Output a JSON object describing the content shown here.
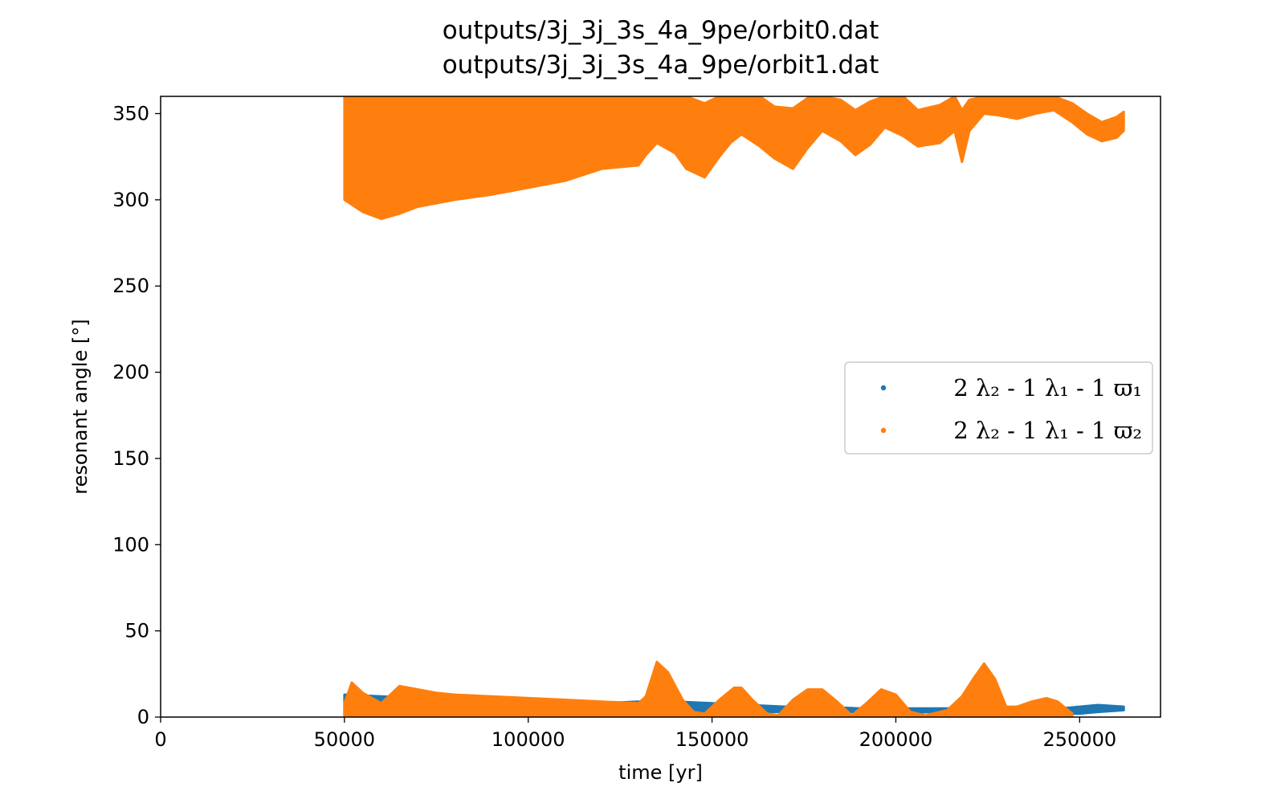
{
  "chart_data": {
    "type": "scatter",
    "title_lines": [
      "outputs/3j_3j_3s_4a_9pe/orbit0.dat",
      "outputs/3j_3j_3s_4a_9pe/orbit1.dat"
    ],
    "xlabel": "time [yr]",
    "ylabel": "resonant angle [°]",
    "xlim": [
      0,
      272000
    ],
    "ylim": [
      0,
      360
    ],
    "xticks": [
      0,
      50000,
      100000,
      150000,
      200000,
      250000
    ],
    "yticks": [
      0,
      50,
      100,
      150,
      200,
      250,
      300,
      350
    ],
    "grid": false,
    "legend_position": "center-right",
    "series": [
      {
        "name": "2 λ₂ - 1 λ₁ - 1 ϖ₁",
        "color": "#1f77b4",
        "time_range": [
          50000,
          262000
        ],
        "bands": [
          {
            "x": [
              50000,
              60000,
              70000,
              80000,
              90000,
              100000,
              110000,
              120000,
              130000,
              135000,
              140000,
              150000,
              160000,
              170000,
              180000,
              190000,
              200000,
              210000,
              220000,
              230000,
              240000,
              250000,
              255000,
              262000
            ],
            "low": [
              1,
              2,
              2,
              3,
              3,
              3,
              3,
              3,
              3,
              4,
              4,
              3,
              3,
              3,
              3,
              3,
              2,
              3,
              3,
              2,
              2,
              2,
              3,
              4
            ],
            "high": [
              13,
              12,
              11,
              10,
              10,
              9,
              8,
              8,
              9,
              9,
              9,
              8,
              7,
              6,
              6,
              5,
              5,
              5,
              5,
              4,
              4,
              6,
              7,
              6
            ]
          }
        ]
      },
      {
        "name": "2 λ₂ - 1 λ₁ - 1 ϖ₂",
        "color": "#ff7f0e",
        "time_range": [
          50000,
          262000
        ],
        "bands": [
          {
            "x": [
              50000,
              55000,
              60000,
              65000,
              70000,
              80000,
              90000,
              100000,
              110000,
              120000,
              130000,
              132000,
              135000,
              140000,
              143000,
              148000,
              152000,
              155000,
              158000,
              163000,
              167000,
              172000,
              176000,
              180000,
              185000,
              189000,
              193000,
              197000,
              202000,
              206000,
              212000,
              216000,
              218000,
              220000,
              224000,
              228000,
              233000,
              238000,
              243000,
              248000,
              252000,
              256000,
              260000,
              262000
            ],
            "low": [
              300,
              293,
              289,
              292,
              296,
              300,
              303,
              307,
              311,
              318,
              320,
              326,
              333,
              327,
              318,
              313,
              325,
              333,
              338,
              331,
              324,
              318,
              330,
              340,
              334,
              326,
              332,
              342,
              337,
              331,
              333,
              340,
              322,
              340,
              350,
              349,
              347,
              350,
              352,
              345,
              338,
              334,
              336,
              340
            ],
            "high": [
              360,
              360,
              360,
              360,
              360,
              360,
              360,
              360,
              360,
              360,
              360,
              360,
              360,
              360,
              360,
              356,
              360,
              360,
              360,
              360,
              354,
              353,
              359,
              360,
              358,
              352,
              357,
              360,
              360,
              352,
              355,
              360,
              352,
              358,
              360,
              360,
              360,
              360,
              360,
              356,
              350,
              345,
              348,
              351
            ]
          },
          {
            "x": [
              50000,
              52000,
              55000,
              60000,
              65000,
              70000,
              75000,
              80000,
              90000,
              100000,
              110000,
              120000,
              130000,
              132000,
              135000,
              138000,
              142000,
              145000,
              148000,
              152000,
              156000,
              158000,
              161000,
              165000,
              168000,
              172000,
              176000,
              180000,
              184000,
              188000,
              192000,
              196000,
              200000,
              204000,
              208000,
              214000,
              218000,
              221000,
              224000,
              227000,
              230000,
              233000,
              237000,
              241000,
              244000,
              248000
            ],
            "low": [
              0,
              0,
              0,
              0,
              0,
              0,
              0,
              0,
              0,
              0,
              0,
              0,
              0,
              0,
              0,
              0,
              0,
              0,
              0,
              0,
              0,
              0,
              0,
              0,
              0,
              0,
              0,
              0,
              0,
              0,
              0,
              0,
              0,
              0,
              0,
              0,
              0,
              0,
              0,
              0,
              0,
              0,
              0,
              0,
              0,
              0
            ],
            "high": [
              8,
              20,
              14,
              8,
              18,
              16,
              14,
              13,
              12,
              11,
              10,
              9,
              8,
              12,
              32,
              26,
              10,
              3,
              2,
              10,
              17,
              17,
              10,
              2,
              1,
              10,
              16,
              16,
              9,
              1,
              8,
              16,
              13,
              3,
              1,
              4,
              12,
              22,
              31,
              22,
              6,
              6,
              9,
              11,
              9,
              2
            ]
          }
        ]
      }
    ]
  }
}
